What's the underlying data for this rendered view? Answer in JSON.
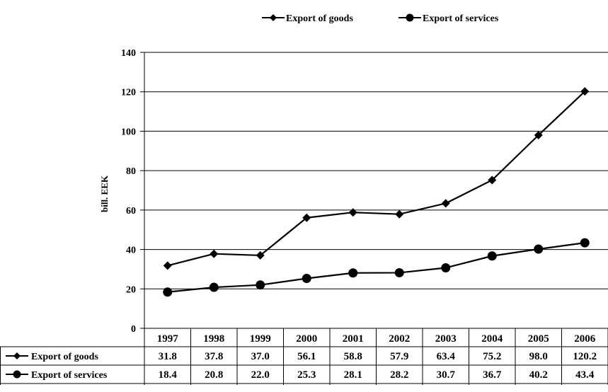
{
  "chart_data": {
    "type": "line",
    "title": "",
    "xlabel": "",
    "ylabel": "bill. EEK",
    "ylim": [
      0,
      140
    ],
    "yticks": [
      0,
      20,
      40,
      60,
      80,
      100,
      120,
      140
    ],
    "grid": true,
    "legend_position": "top-center",
    "categories": [
      "1997",
      "1998",
      "1999",
      "2000",
      "2001",
      "2002",
      "2003",
      "2004",
      "2005",
      "2006"
    ],
    "series": [
      {
        "name": "Export of goods",
        "marker": "diamond",
        "color": "#000000",
        "values": [
          31.8,
          37.8,
          37.0,
          56.1,
          58.8,
          57.9,
          63.4,
          75.2,
          98.0,
          120.2
        ],
        "labels": [
          "31.8",
          "37.8",
          "37.0",
          "56.1",
          "58.8",
          "57.9",
          "63.4",
          "75.2",
          "98.0",
          "120.2"
        ]
      },
      {
        "name": "Export of services",
        "marker": "circle",
        "color": "#000000",
        "values": [
          18.4,
          20.8,
          22.0,
          25.3,
          28.1,
          28.2,
          30.7,
          36.7,
          40.2,
          43.4
        ],
        "labels": [
          "18.4",
          "20.8",
          "22.0",
          "25.3",
          "28.1",
          "28.2",
          "30.7",
          "36.7",
          "40.2",
          "43.4"
        ]
      }
    ]
  }
}
